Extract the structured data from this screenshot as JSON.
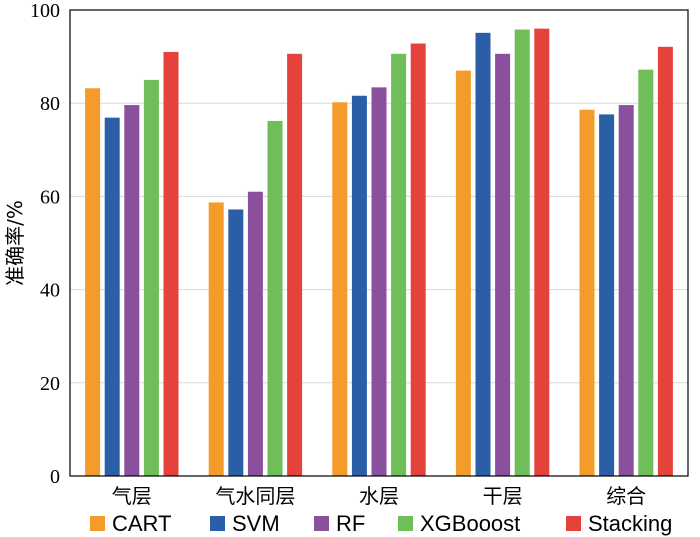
{
  "chart_data": {
    "type": "bar",
    "title": "",
    "xlabel": "",
    "ylabel": "准确率/%",
    "ylim": [
      0,
      100
    ],
    "yticks": [
      0,
      20,
      40,
      60,
      80,
      100
    ],
    "grid": true,
    "legend_position": "bottom",
    "categories": [
      "气层",
      "气水同层",
      "水层",
      "干层",
      "综合"
    ],
    "series": [
      {
        "name": "CART",
        "color": "#f39c2b",
        "values": [
          83.2,
          58.7,
          80.2,
          87.0,
          78.6
        ]
      },
      {
        "name": "SVM",
        "color": "#2a5fa8",
        "values": [
          76.9,
          57.2,
          81.6,
          95.1,
          77.6
        ]
      },
      {
        "name": "RF",
        "color": "#8a4f9d",
        "values": [
          79.6,
          61.0,
          83.4,
          90.6,
          79.6
        ]
      },
      {
        "name": "XGBooost",
        "color": "#6fbe5a",
        "values": [
          85.0,
          76.2,
          90.6,
          95.8,
          87.2
        ]
      },
      {
        "name": "Stacking",
        "color": "#e5423c",
        "values": [
          91.0,
          90.6,
          92.8,
          96.0,
          92.1
        ]
      }
    ]
  }
}
